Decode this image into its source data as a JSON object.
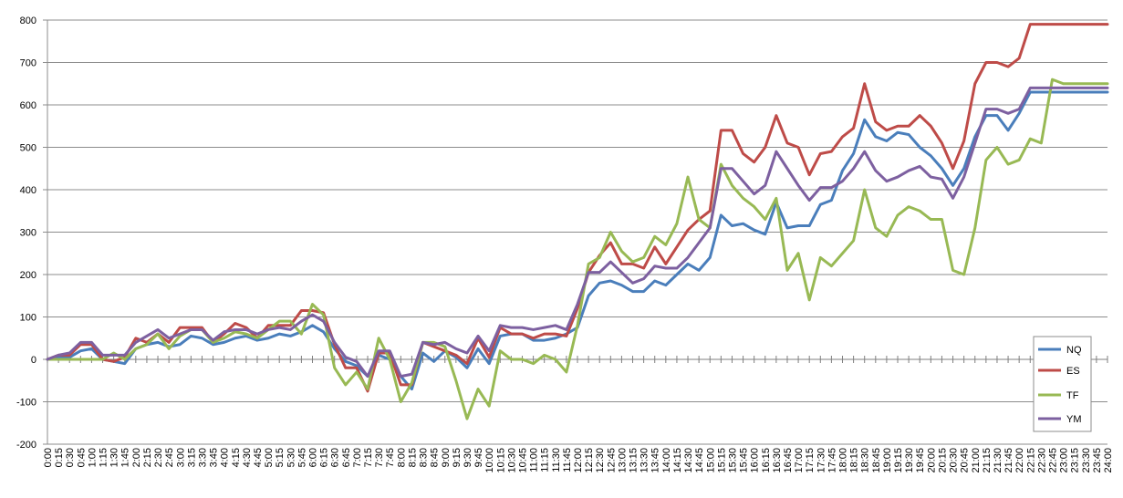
{
  "chart_data": {
    "type": "line",
    "title": "",
    "xlabel": "",
    "ylabel": "",
    "ylim": [
      -200,
      800
    ],
    "yticks": [
      -200,
      -100,
      0,
      100,
      200,
      300,
      400,
      500,
      600,
      700,
      800
    ],
    "grid": true,
    "legend_position": "right",
    "x": [
      "0:00",
      "0:15",
      "0:30",
      "0:45",
      "1:00",
      "1:15",
      "1:30",
      "1:45",
      "2:00",
      "2:15",
      "2:30",
      "2:45",
      "3:00",
      "3:15",
      "3:30",
      "3:45",
      "4:00",
      "4:15",
      "4:30",
      "4:45",
      "5:00",
      "5:15",
      "5:30",
      "5:45",
      "6:00",
      "6:15",
      "6:30",
      "6:45",
      "7:00",
      "7:15",
      "7:30",
      "7:45",
      "8:00",
      "8:15",
      "8:30",
      "8:45",
      "9:00",
      "9:15",
      "9:30",
      "9:45",
      "10:00",
      "10:15",
      "10:30",
      "10:45",
      "11:00",
      "11:15",
      "11:30",
      "11:45",
      "12:00",
      "12:15",
      "12:30",
      "12:45",
      "13:00",
      "13:15",
      "13:30",
      "13:45",
      "14:00",
      "14:15",
      "14:30",
      "14:45",
      "15:00",
      "15:15",
      "15:30",
      "15:45",
      "16:00",
      "16:15",
      "16:30",
      "16:45",
      "17:00",
      "17:15",
      "17:30",
      "17:45",
      "18:00",
      "18:15",
      "18:30",
      "18:45",
      "19:00",
      "19:15",
      "19:30",
      "19:45",
      "20:00",
      "20:15",
      "20:30",
      "20:45",
      "21:00",
      "21:15",
      "21:30",
      "21:45",
      "22:00",
      "22:15",
      "22:30",
      "22:45",
      "23:00",
      "23:15",
      "23:30",
      "23:45",
      "24:00"
    ],
    "series": [
      {
        "name": "NQ",
        "color": "#4A7EBB",
        "values": [
          0,
          5,
          5,
          20,
          25,
          0,
          -5,
          -10,
          25,
          35,
          40,
          30,
          35,
          55,
          50,
          35,
          40,
          50,
          55,
          45,
          50,
          60,
          55,
          65,
          80,
          65,
          25,
          -5,
          -15,
          -40,
          10,
          0,
          -40,
          -70,
          15,
          -5,
          20,
          5,
          -20,
          25,
          -10,
          55,
          60,
          60,
          45,
          45,
          50,
          60,
          75,
          150,
          180,
          185,
          175,
          160,
          160,
          185,
          175,
          200,
          225,
          210,
          240,
          340,
          315,
          320,
          305,
          295,
          370,
          310,
          315,
          315,
          365,
          375,
          445,
          485,
          565,
          525,
          515,
          535,
          530,
          500,
          480,
          450,
          410,
          450,
          525,
          575,
          575,
          540,
          580,
          630,
          630,
          630,
          630,
          630,
          630,
          630,
          630
        ]
      },
      {
        "name": "ES",
        "color": "#BE4B48",
        "values": [
          0,
          10,
          10,
          35,
          35,
          0,
          -5,
          5,
          50,
          40,
          60,
          40,
          75,
          75,
          75,
          40,
          60,
          85,
          75,
          50,
          80,
          80,
          80,
          115,
          115,
          110,
          35,
          -20,
          -20,
          -75,
          15,
          15,
          -60,
          -60,
          40,
          30,
          20,
          10,
          -10,
          50,
          5,
          75,
          60,
          60,
          50,
          60,
          60,
          55,
          120,
          205,
          245,
          275,
          225,
          225,
          215,
          265,
          225,
          265,
          305,
          330,
          350,
          540,
          540,
          485,
          465,
          500,
          575,
          510,
          500,
          435,
          485,
          490,
          525,
          545,
          650,
          560,
          540,
          550,
          550,
          575,
          550,
          510,
          450,
          515,
          650,
          700,
          700,
          690,
          710,
          790,
          790,
          790,
          790,
          790,
          790,
          790,
          790
        ]
      },
      {
        "name": "TF",
        "color": "#98B954",
        "values": [
          0,
          0,
          0,
          0,
          0,
          0,
          15,
          0,
          25,
          35,
          60,
          25,
          55,
          70,
          70,
          40,
          50,
          65,
          60,
          50,
          70,
          90,
          90,
          60,
          130,
          105,
          -20,
          -60,
          -30,
          -70,
          50,
          0,
          -100,
          -55,
          40,
          40,
          30,
          -50,
          -140,
          -70,
          -110,
          20,
          0,
          0,
          -10,
          10,
          0,
          -30,
          80,
          225,
          240,
          300,
          255,
          230,
          240,
          290,
          270,
          320,
          430,
          330,
          310,
          460,
          410,
          380,
          360,
          330,
          380,
          210,
          250,
          140,
          240,
          220,
          250,
          280,
          400,
          310,
          290,
          340,
          360,
          350,
          330,
          330,
          210,
          200,
          310,
          470,
          500,
          460,
          470,
          520,
          510,
          660,
          650,
          650,
          650,
          650,
          650
        ]
      },
      {
        "name": "YM",
        "color": "#7D60A0",
        "values": [
          0,
          10,
          15,
          40,
          40,
          10,
          10,
          10,
          40,
          55,
          70,
          50,
          60,
          70,
          70,
          45,
          65,
          70,
          70,
          60,
          70,
          75,
          70,
          90,
          105,
          90,
          40,
          5,
          -5,
          -40,
          20,
          20,
          -40,
          -35,
          40,
          35,
          40,
          25,
          15,
          55,
          20,
          80,
          75,
          75,
          70,
          75,
          80,
          70,
          130,
          205,
          205,
          230,
          205,
          180,
          190,
          220,
          215,
          215,
          240,
          275,
          310,
          450,
          450,
          420,
          390,
          410,
          490,
          450,
          410,
          375,
          405,
          405,
          420,
          450,
          490,
          445,
          420,
          430,
          445,
          455,
          430,
          425,
          380,
          430,
          510,
          590,
          590,
          580,
          590,
          640,
          640,
          640,
          640,
          640,
          640,
          640,
          640
        ]
      }
    ]
  }
}
